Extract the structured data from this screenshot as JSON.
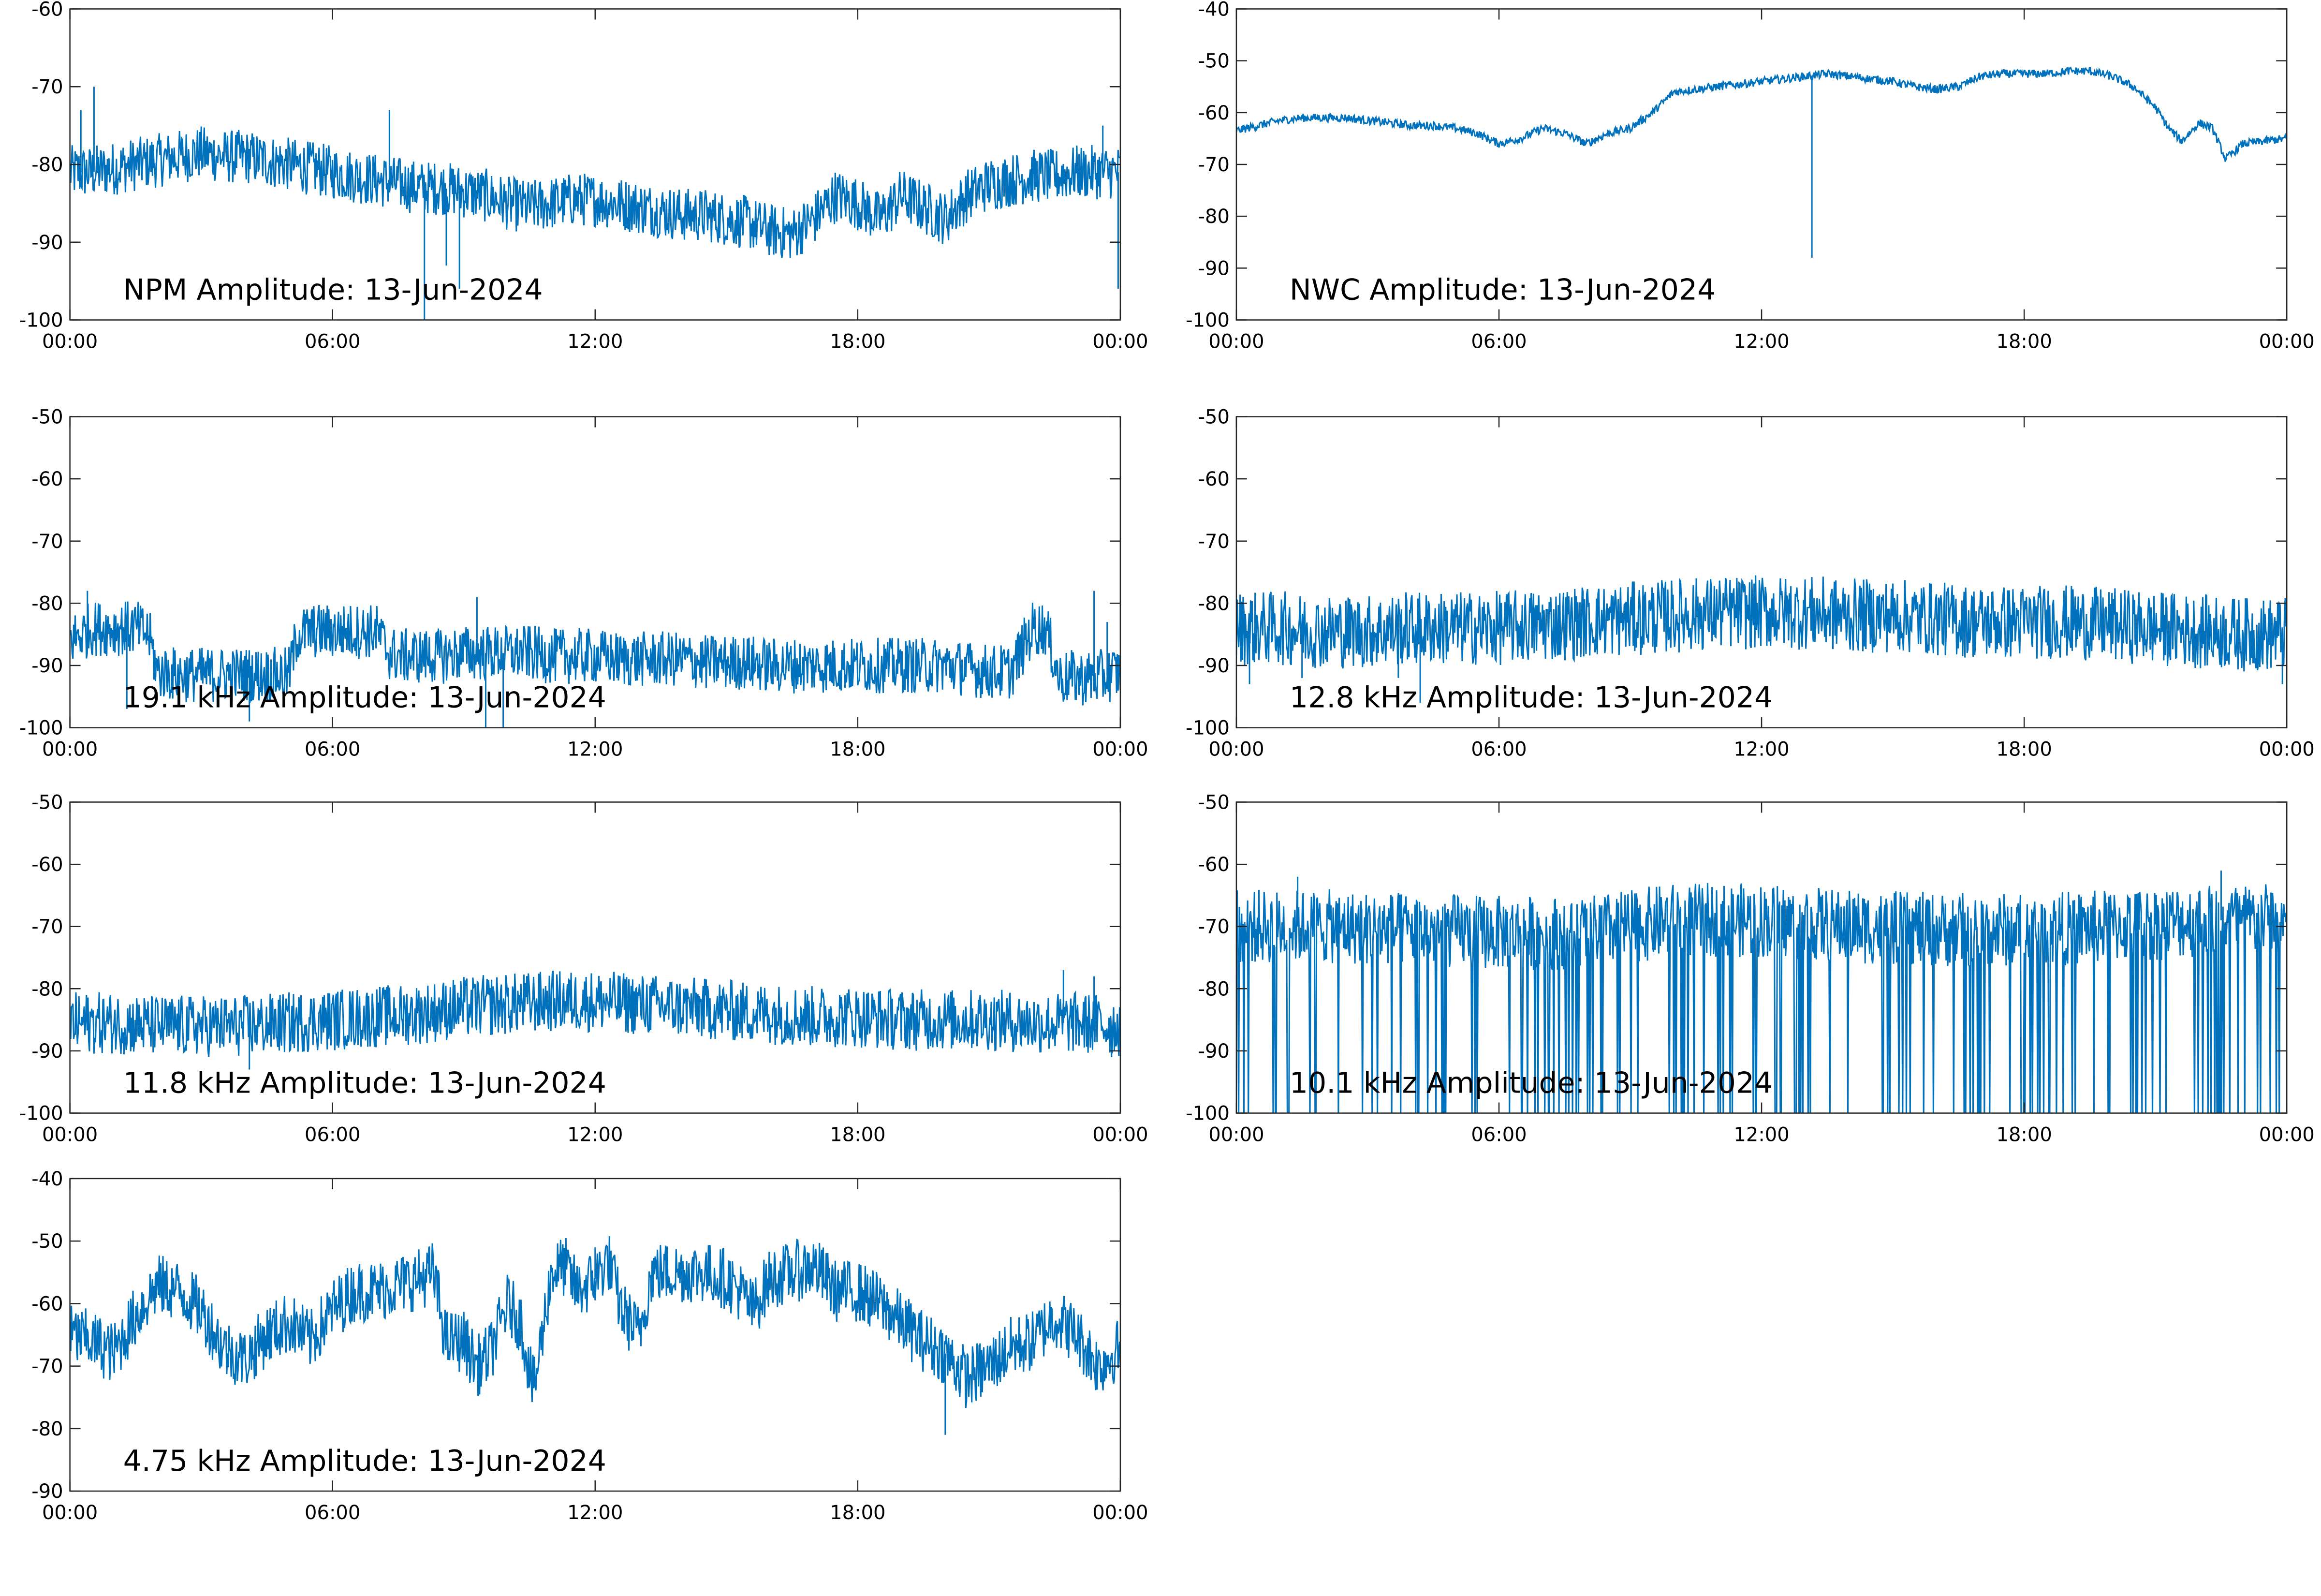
{
  "figure": {
    "background": "#ffffff",
    "line_color": "#0072bd",
    "axis_color": "#262626"
  },
  "chart_data": [
    {
      "type": "line",
      "title": "NPM Amplitude: 13-Jun-2024",
      "xlabel": "",
      "ylabel": "",
      "x_ticks": [
        "00:00",
        "06:00",
        "12:00",
        "18:00",
        "00:00"
      ],
      "xlim": [
        0,
        24
      ],
      "ylim": [
        -100,
        -60
      ],
      "y_ticks": [
        -60,
        -70,
        -80,
        -90,
        -100
      ],
      "grid": false,
      "series": [
        {
          "x": [
            0,
            0.5,
            1,
            1.5,
            2,
            2.5,
            3,
            3.5,
            4,
            4.5,
            5,
            5.5,
            6,
            6.5,
            7,
            7.5,
            8,
            8.5,
            9,
            9.5,
            10,
            10.5,
            11,
            11.5,
            12,
            12.5,
            13,
            13.5,
            14,
            14.5,
            15,
            15.5,
            16,
            16.5,
            17,
            17.5,
            18,
            18.5,
            19,
            19.5,
            20,
            20.5,
            21,
            21.5,
            22,
            22.5,
            23,
            23.5,
            24
          ],
          "values": [
            -81,
            -81,
            -80.5,
            -80,
            -79.5,
            -79,
            -78.5,
            -79,
            -79,
            -79.5,
            -80,
            -80.5,
            -81,
            -81.5,
            -82,
            -82.5,
            -83,
            -83,
            -83.5,
            -84,
            -85,
            -85.5,
            -85,
            -84.5,
            -84.5,
            -85,
            -85.5,
            -86,
            -86.5,
            -86.5,
            -87,
            -87.5,
            -88.5,
            -89,
            -87,
            -84,
            -85,
            -87,
            -84,
            -85.5,
            -87,
            -84,
            -82.5,
            -82,
            -81.5,
            -81.5,
            -81,
            -81,
            -81
          ],
          "band": 3.5
        }
      ],
      "spikes": [
        [
          0.25,
          -73
        ],
        [
          0.55,
          -70
        ],
        [
          7.3,
          -73
        ],
        [
          8.1,
          -100
        ],
        [
          8.6,
          -93
        ],
        [
          8.9,
          -96
        ],
        [
          23.6,
          -75
        ],
        [
          23.95,
          -96
        ]
      ]
    },
    {
      "type": "line",
      "title": "NWC Amplitude: 13-Jun-2024",
      "xlabel": "",
      "ylabel": "",
      "x_ticks": [
        "00:00",
        "06:00",
        "12:00",
        "18:00",
        "00:00"
      ],
      "xlim": [
        0,
        24
      ],
      "ylim": [
        -100,
        -40
      ],
      "y_ticks": [
        -40,
        -50,
        -60,
        -70,
        -80,
        -90,
        -100
      ],
      "grid": false,
      "series": [
        {
          "x": [
            0,
            0.5,
            1,
            1.5,
            2,
            2.5,
            3,
            3.5,
            4,
            4.5,
            5,
            5.5,
            6,
            6.5,
            7,
            7.5,
            8,
            8.5,
            9,
            9.5,
            10,
            10.5,
            11,
            11.5,
            12,
            12.5,
            13,
            13.5,
            14,
            14.5,
            15,
            15.5,
            16,
            16.5,
            17,
            17.5,
            18,
            18.5,
            19,
            19.5,
            20,
            20.5,
            21,
            21.3,
            21.6,
            22,
            22.3,
            22.6,
            23,
            23.5,
            24
          ],
          "values": [
            -63.5,
            -62.5,
            -61.5,
            -61,
            -61,
            -61,
            -61.5,
            -62,
            -62.5,
            -62.5,
            -63,
            -64,
            -66,
            -65,
            -63,
            -64,
            -66,
            -64,
            -63,
            -60,
            -56,
            -55.5,
            -55,
            -54.5,
            -54,
            -53.5,
            -53,
            -52.5,
            -53,
            -53.5,
            -54,
            -55,
            -55.5,
            -55,
            -53,
            -52.5,
            -52.5,
            -52.5,
            -52,
            -52,
            -53,
            -55,
            -59,
            -63,
            -65.5,
            -62,
            -63,
            -69,
            -66,
            -65.5,
            -65
          ],
          "band": 0.8
        }
      ],
      "spikes": [
        [
          13.15,
          -88
        ]
      ]
    },
    {
      "type": "line",
      "title": "19.1 kHz Amplitude: 13-Jun-2024",
      "xlabel": "",
      "ylabel": "",
      "x_ticks": [
        "00:00",
        "06:00",
        "12:00",
        "18:00",
        "00:00"
      ],
      "xlim": [
        0,
        24
      ],
      "ylim": [
        -100,
        -50
      ],
      "y_ticks": [
        -50,
        -60,
        -70,
        -80,
        -90,
        -100
      ],
      "grid": false,
      "series": [
        {
          "x": [
            0,
            0.5,
            1,
            1.5,
            1.8,
            2,
            2.5,
            3,
            3.5,
            4,
            4.5,
            5,
            5.2,
            5.5,
            6,
            6.5,
            7,
            7.3,
            7.5,
            8,
            8.5,
            9,
            9.5,
            10,
            10.5,
            11,
            11.5,
            12,
            12.5,
            13,
            13.5,
            14,
            14.5,
            15,
            15.5,
            16,
            16.5,
            17,
            17.5,
            18,
            18.5,
            19,
            19.5,
            20,
            20.5,
            21,
            21.5,
            22,
            22.3,
            22.6,
            23,
            23.5,
            24
          ],
          "values": [
            -86,
            -84,
            -84,
            -84,
            -85,
            -91,
            -91.5,
            -91.5,
            -91.5,
            -91.5,
            -91.5,
            -91.5,
            -85,
            -84.5,
            -84.5,
            -84.5,
            -84.5,
            -88,
            -88.5,
            -88.5,
            -88.5,
            -88,
            -88,
            -88,
            -88,
            -88.5,
            -88.5,
            -88.5,
            -89,
            -89,
            -89,
            -89,
            -89.5,
            -89.5,
            -89.5,
            -90,
            -90,
            -90,
            -90,
            -90,
            -90,
            -90,
            -90,
            -90,
            -90.5,
            -91,
            -91,
            -84,
            -84,
            -92,
            -92,
            -92,
            -91
          ],
          "band": 4.5
        }
      ],
      "spikes": [
        [
          0.4,
          -78
        ],
        [
          1.3,
          -97
        ],
        [
          4.1,
          -99
        ],
        [
          9.3,
          -79
        ],
        [
          9.5,
          -100
        ],
        [
          9.9,
          -100
        ],
        [
          23.4,
          -78
        ],
        [
          23.7,
          -83
        ]
      ]
    },
    {
      "type": "line",
      "title": "12.8 kHz Amplitude: 13-Jun-2024",
      "xlabel": "",
      "ylabel": "",
      "x_ticks": [
        "00:00",
        "06:00",
        "12:00",
        "18:00",
        "00:00"
      ],
      "xlim": [
        0,
        24
      ],
      "ylim": [
        -100,
        -50
      ],
      "y_ticks": [
        -50,
        -60,
        -70,
        -80,
        -90,
        -100
      ],
      "grid": false,
      "series": [
        {
          "x": [
            0,
            1,
            2,
            3,
            4,
            5,
            6,
            7,
            8,
            9,
            10,
            11,
            12,
            13,
            14,
            15,
            16,
            17,
            18,
            19,
            20,
            21,
            22,
            23,
            24
          ],
          "values": [
            -84,
            -84,
            -84.5,
            -84.5,
            -84,
            -84,
            -84,
            -83.5,
            -83,
            -82.5,
            -82,
            -81.5,
            -81.5,
            -81.5,
            -82,
            -82,
            -82.5,
            -83,
            -83,
            -83,
            -83.5,
            -84,
            -84.5,
            -85,
            -85
          ],
          "band": 6
        }
      ],
      "spikes": [
        [
          0.3,
          -93
        ],
        [
          1.5,
          -92
        ],
        [
          3.7,
          -92
        ],
        [
          4.2,
          -96
        ],
        [
          23.9,
          -93
        ]
      ]
    },
    {
      "type": "line",
      "title": "11.8 kHz Amplitude: 13-Jun-2024",
      "xlabel": "",
      "ylabel": "",
      "x_ticks": [
        "00:00",
        "06:00",
        "12:00",
        "18:00",
        "00:00"
      ],
      "xlim": [
        0,
        24
      ],
      "ylim": [
        -100,
        -50
      ],
      "y_ticks": [
        -50,
        -60,
        -70,
        -80,
        -90,
        -100
      ],
      "grid": false,
      "series": [
        {
          "x": [
            0,
            1,
            2,
            3,
            4,
            5,
            6,
            7,
            8,
            9,
            10,
            11,
            12,
            13,
            14,
            15,
            16,
            17,
            18,
            19,
            20,
            21,
            22,
            23,
            24
          ],
          "values": [
            -85.5,
            -85.5,
            -86,
            -86,
            -86,
            -85.5,
            -85,
            -84.5,
            -84,
            -83,
            -82.5,
            -82,
            -82,
            -82.5,
            -83,
            -83.5,
            -84,
            -84.5,
            -84.5,
            -85,
            -85,
            -85,
            -85.5,
            -85.5,
            -86
          ],
          "band": 5
        }
      ],
      "spikes": [
        [
          4.1,
          -93
        ],
        [
          22.7,
          -77
        ],
        [
          23.4,
          -78
        ],
        [
          23.8,
          -91
        ]
      ]
    },
    {
      "type": "line",
      "title": "10.1 kHz Amplitude: 13-Jun-2024",
      "xlabel": "",
      "ylabel": "",
      "x_ticks": [
        "00:00",
        "06:00",
        "12:00",
        "18:00",
        "00:00"
      ],
      "xlim": [
        0,
        24
      ],
      "ylim": [
        -100,
        -50
      ],
      "y_ticks": [
        -50,
        -60,
        -70,
        -80,
        -90,
        -100
      ],
      "grid": false,
      "series": [
        {
          "x": [
            0,
            2,
            4,
            6,
            8,
            10,
            12,
            14,
            16,
            18,
            20,
            22,
            24
          ],
          "values": [
            -70,
            -70,
            -70.5,
            -71,
            -71,
            -69,
            -69,
            -70,
            -70.5,
            -70.5,
            -70,
            -69,
            -69
          ],
          "band": 6
        }
      ],
      "dropouts_to": -100,
      "dropout_count": 150,
      "spikes": [
        [
          1.4,
          -62
        ],
        [
          22.5,
          -61
        ]
      ]
    },
    {
      "type": "line",
      "title": "4.75 kHz Amplitude: 13-Jun-2024",
      "xlabel": "",
      "ylabel": "",
      "x_ticks": [
        "00:00",
        "06:00",
        "12:00",
        "18:00",
        "00:00"
      ],
      "xlim": [
        0,
        24
      ],
      "ylim": [
        -90,
        -40
      ],
      "y_ticks": [
        -40,
        -50,
        -60,
        -70,
        -80,
        -90
      ],
      "grid": false,
      "series": [
        {
          "x": [
            0,
            0.5,
            1,
            1.5,
            2,
            2.5,
            3,
            3.5,
            4,
            4.5,
            5,
            5.5,
            6,
            6.5,
            7,
            7.5,
            8,
            8.3,
            8.6,
            9,
            9.3,
            9.6,
            10,
            10.3,
            10.6,
            11,
            11.3,
            11.6,
            12,
            12.3,
            12.6,
            13,
            13.3,
            13.6,
            14,
            14.5,
            15,
            15.3,
            15.6,
            16,
            16.5,
            17,
            17.5,
            18,
            18.5,
            19,
            19.5,
            20,
            20.5,
            21,
            21.5,
            22,
            22.5,
            23,
            23.5,
            24
          ],
          "values": [
            -65,
            -66,
            -68,
            -62,
            -57,
            -58,
            -61,
            -67,
            -69,
            -65,
            -63,
            -66,
            -61,
            -58,
            -58,
            -57,
            -56,
            -55,
            -66,
            -66,
            -70,
            -68,
            -60,
            -63,
            -74,
            -55,
            -54,
            -58,
            -56,
            -53,
            -61,
            -65,
            -55,
            -55,
            -55,
            -55,
            -56,
            -58,
            -61,
            -56,
            -55,
            -54,
            -58,
            -58,
            -60,
            -63,
            -66,
            -68,
            -72,
            -70,
            -67,
            -66,
            -62,
            -65,
            -70,
            -67
          ],
          "band": 5
        }
      ],
      "spikes": [
        [
          20.0,
          -81
        ],
        [
          8.2,
          -51
        ],
        [
          12.0,
          -51
        ]
      ]
    }
  ]
}
